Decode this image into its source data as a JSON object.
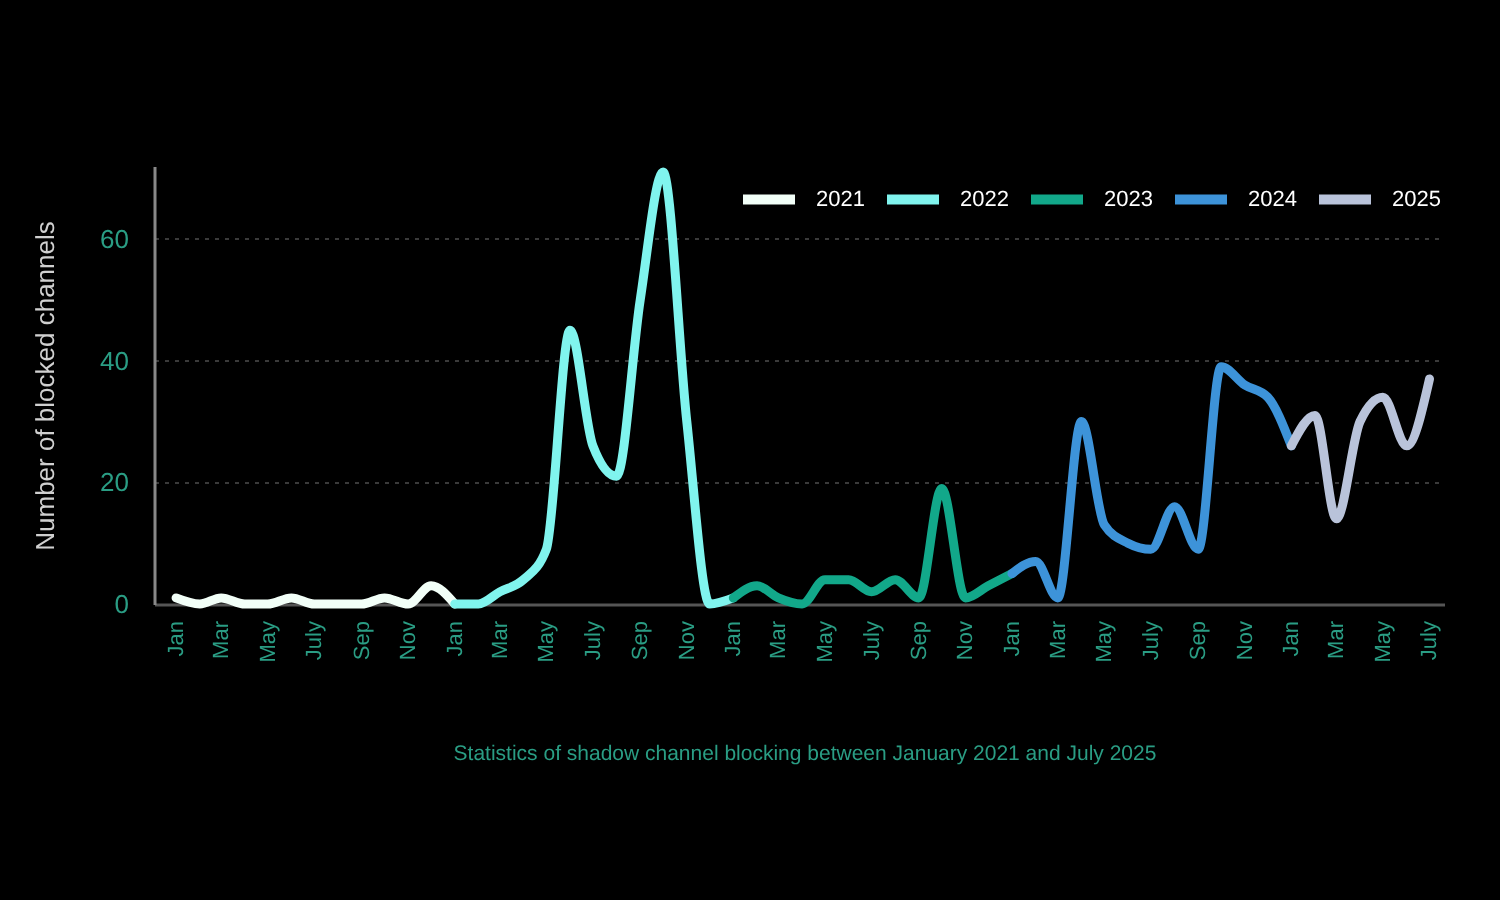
{
  "chart_data": {
    "type": "line",
    "ylabel": "Number of blocked channels",
    "annotations": [
      "Statistics of shadow channel blocking between January 2021 and July 2025"
    ],
    "xlim": [
      "2020-12-03",
      "2025-07-20"
    ],
    "ylim": [
      0,
      72
    ],
    "yticks": [
      0,
      20,
      40,
      60
    ],
    "xticks": [
      {
        "value": "2021-01",
        "label": "Jan"
      },
      {
        "value": "2021-03",
        "label": "Mar"
      },
      {
        "value": "2021-05",
        "label": "May"
      },
      {
        "value": "2021-07",
        "label": "July"
      },
      {
        "value": "2021-09",
        "label": "Sep"
      },
      {
        "value": "2021-11",
        "label": "Nov"
      },
      {
        "value": "2022-01",
        "label": "Jan"
      },
      {
        "value": "2022-03",
        "label": "Mar"
      },
      {
        "value": "2022-05",
        "label": "May"
      },
      {
        "value": "2022-07",
        "label": "July"
      },
      {
        "value": "2022-09",
        "label": "Sep"
      },
      {
        "value": "2022-11",
        "label": "Nov"
      },
      {
        "value": "2023-01",
        "label": "Jan"
      },
      {
        "value": "2023-03",
        "label": "Mar"
      },
      {
        "value": "2023-05",
        "label": "May"
      },
      {
        "value": "2023-07",
        "label": "July"
      },
      {
        "value": "2023-09",
        "label": "Sep"
      },
      {
        "value": "2023-11",
        "label": "Nov"
      },
      {
        "value": "2024-01",
        "label": "Jan"
      },
      {
        "value": "2024-03",
        "label": "Mar"
      },
      {
        "value": "2024-05",
        "label": "May"
      },
      {
        "value": "2024-07",
        "label": "July"
      },
      {
        "value": "2024-09",
        "label": "Sep"
      },
      {
        "value": "2024-11",
        "label": "Nov"
      },
      {
        "value": "2025-01",
        "label": "Jan"
      },
      {
        "value": "2025-03",
        "label": "Mar"
      },
      {
        "value": "2025-05",
        "label": "May"
      },
      {
        "value": "2025-07",
        "label": "July"
      }
    ],
    "grid": "y",
    "legend": "top right",
    "series": [
      {
        "name": "2021",
        "color": "#f2fff8",
        "x": [
          "2021-01",
          "2021-02",
          "2021-03",
          "2021-04",
          "2021-05",
          "2021-06",
          "2021-07",
          "2021-08",
          "2021-09",
          "2021-10",
          "2021-11",
          "2021-12",
          "2022-01"
        ],
        "values": [
          1,
          0,
          1,
          0,
          0,
          1,
          0,
          0,
          0,
          1,
          0,
          3,
          0
        ]
      },
      {
        "name": "2022",
        "color": "#80f4ee",
        "x": [
          "2022-01",
          "2022-02",
          "2022-03",
          "2022-04",
          "2022-05",
          "2022-06",
          "2022-07",
          "2022-08",
          "2022-09",
          "2022-10",
          "2022-11",
          "2022-12",
          "2023-01"
        ],
        "values": [
          0,
          0,
          2,
          4,
          9,
          45,
          26,
          21,
          50,
          71,
          30,
          0,
          1
        ]
      },
      {
        "name": "2023",
        "color": "#12a88a",
        "x": [
          "2023-01",
          "2023-02",
          "2023-03",
          "2023-04",
          "2023-05",
          "2023-06",
          "2023-07",
          "2023-08",
          "2023-09",
          "2023-10",
          "2023-11",
          "2023-12",
          "2024-01"
        ],
        "values": [
          1,
          3,
          1,
          0,
          4,
          4,
          2,
          4,
          1,
          19,
          1,
          3,
          5
        ]
      },
      {
        "name": "2024",
        "color": "#3d93d9",
        "x": [
          "2024-01",
          "2024-02",
          "2024-03",
          "2024-04",
          "2024-05",
          "2024-06",
          "2024-07",
          "2024-08",
          "2024-09",
          "2024-10",
          "2024-11",
          "2024-12",
          "2025-01"
        ],
        "values": [
          5,
          7,
          1,
          30,
          13,
          10,
          9,
          16,
          9,
          39,
          36,
          34,
          26
        ]
      },
      {
        "name": "2025",
        "color": "#b9c3da",
        "x": [
          "2025-01",
          "2025-02",
          "2025-03",
          "2025-04",
          "2025-05",
          "2025-06",
          "2025-07"
        ],
        "values": [
          26,
          31,
          14,
          30,
          34,
          26,
          37
        ]
      }
    ]
  }
}
